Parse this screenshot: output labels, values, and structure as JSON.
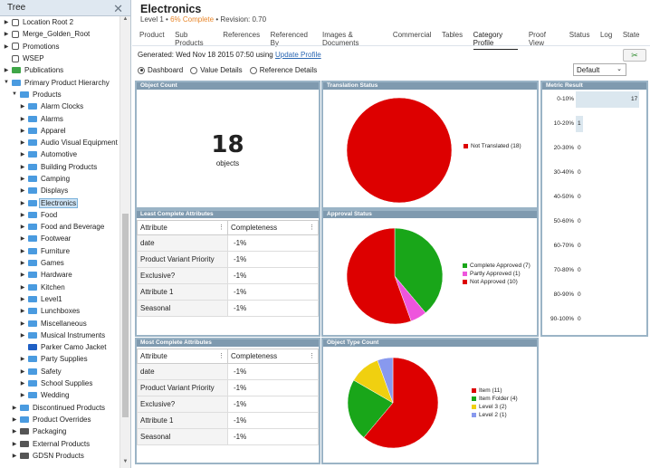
{
  "tree": {
    "title": "Tree",
    "items": [
      {
        "label": "Location Root 2",
        "expander": "▶",
        "icon": "struct",
        "indent": 0
      },
      {
        "label": "Merge_Golden_Root",
        "expander": "▶",
        "icon": "struct",
        "indent": 0
      },
      {
        "label": "Promotions",
        "expander": "▶",
        "icon": "struct",
        "indent": 0
      },
      {
        "label": "WSEP",
        "expander": "",
        "icon": "struct",
        "indent": 0
      },
      {
        "label": "Publications",
        "expander": "▶",
        "icon": "green",
        "indent": 0
      },
      {
        "label": "Primary Product Hierarchy",
        "expander": "▼",
        "icon": "blue",
        "indent": 0
      },
      {
        "label": "Products",
        "expander": "▼",
        "icon": "blue",
        "indent": 1
      },
      {
        "label": "Alarm Clocks",
        "expander": "▶",
        "icon": "blue",
        "indent": 2
      },
      {
        "label": "Alarms",
        "expander": "▶",
        "icon": "blue",
        "indent": 2
      },
      {
        "label": "Apparel",
        "expander": "▶",
        "icon": "blue",
        "indent": 2
      },
      {
        "label": "Audio Visual Equipment",
        "expander": "▶",
        "icon": "blue",
        "indent": 2
      },
      {
        "label": "Automotive",
        "expander": "▶",
        "icon": "blue",
        "indent": 2
      },
      {
        "label": "Building Products",
        "expander": "▶",
        "icon": "blue",
        "indent": 2
      },
      {
        "label": "Camping",
        "expander": "▶",
        "icon": "blue",
        "indent": 2
      },
      {
        "label": "Displays",
        "expander": "▶",
        "icon": "blue",
        "indent": 2
      },
      {
        "label": "Electronics",
        "expander": "▶",
        "icon": "blue",
        "indent": 2,
        "selected": true
      },
      {
        "label": "Food",
        "expander": "▶",
        "icon": "blue",
        "indent": 2
      },
      {
        "label": "Food and Beverage",
        "expander": "▶",
        "icon": "blue",
        "indent": 2
      },
      {
        "label": "Footwear",
        "expander": "▶",
        "icon": "blue",
        "indent": 2
      },
      {
        "label": "Furniture",
        "expander": "▶",
        "icon": "blue",
        "indent": 2
      },
      {
        "label": "Games",
        "expander": "▶",
        "icon": "blue",
        "indent": 2
      },
      {
        "label": "Hardware",
        "expander": "▶",
        "icon": "blue",
        "indent": 2
      },
      {
        "label": "Kitchen",
        "expander": "▶",
        "icon": "blue",
        "indent": 2
      },
      {
        "label": "Level1",
        "expander": "▶",
        "icon": "blue",
        "indent": 2
      },
      {
        "label": "Lunchboxes",
        "expander": "▶",
        "icon": "blue",
        "indent": 2
      },
      {
        "label": "Miscellaneous",
        "expander": "▶",
        "icon": "blue",
        "indent": 2
      },
      {
        "label": "Musical Instruments",
        "expander": "▶",
        "icon": "blue",
        "indent": 2
      },
      {
        "label": "Parker Camo Jacket",
        "expander": "",
        "icon": "navy",
        "indent": 2
      },
      {
        "label": "Party Supplies",
        "expander": "▶",
        "icon": "blue",
        "indent": 2
      },
      {
        "label": "Safety",
        "expander": "▶",
        "icon": "blue",
        "indent": 2
      },
      {
        "label": "School Supplies",
        "expander": "▶",
        "icon": "blue",
        "indent": 2
      },
      {
        "label": "Wedding",
        "expander": "▶",
        "icon": "blue",
        "indent": 2
      },
      {
        "label": "Discontinued Products",
        "expander": "▶",
        "icon": "blue",
        "indent": 1
      },
      {
        "label": "Product Overrides",
        "expander": "▶",
        "icon": "blue",
        "indent": 1
      },
      {
        "label": "Packaging",
        "expander": "▶",
        "icon": "dark",
        "indent": 1
      },
      {
        "label": "External Products",
        "expander": "▶",
        "icon": "dark",
        "indent": 1
      },
      {
        "label": "GDSN Products",
        "expander": "▶",
        "icon": "dark",
        "indent": 1
      }
    ]
  },
  "header": {
    "title": "Electronics",
    "level": "Level 1",
    "completion": "6% Complete",
    "revision": "Revision: 0.70"
  },
  "tabs": [
    "Product",
    "Sub Products",
    "References",
    "Referenced By",
    "Images & Documents",
    "Commercial",
    "Tables",
    "Category Profile",
    "Proof View",
    "Status",
    "Log",
    "State"
  ],
  "active_tab": "Category Profile",
  "generated": {
    "text": "Generated: Wed Nov 18 2015 07:50 using",
    "link": "Update Profile"
  },
  "views": [
    {
      "label": "Dashboard",
      "selected": true
    },
    {
      "label": "Value Details",
      "selected": false
    },
    {
      "label": "Reference Details",
      "selected": false
    }
  ],
  "select": {
    "value": "Default"
  },
  "object_count": {
    "title": "Object Count",
    "value": "18",
    "unit": "objects"
  },
  "colors": {
    "red": "#dd0000",
    "green": "#19a619",
    "pink": "#ee55dd",
    "yellow": "#f0d010",
    "lavender": "#8899ee",
    "panel_border": "#9bb4c6",
    "panel_title": "#7f9aaf"
  },
  "charts": {
    "translation": {
      "title": "Translation Status",
      "slices": [
        {
          "label": "Not Translated (18)",
          "value": 18,
          "color": "#dd0000"
        }
      ]
    },
    "approval": {
      "title": "Approval Status",
      "slices": [
        {
          "label": "Complete Approved (7)",
          "value": 7,
          "color": "#19a619"
        },
        {
          "label": "Partly Approved (1)",
          "value": 1,
          "color": "#ee55dd"
        },
        {
          "label": "Not Approved (10)",
          "value": 10,
          "color": "#dd0000"
        }
      ]
    },
    "object_type": {
      "title": "Object Type Count",
      "slices": [
        {
          "label": "Item (11)",
          "value": 11,
          "color": "#dd0000"
        },
        {
          "label": "Item Folder (4)",
          "value": 4,
          "color": "#19a619"
        },
        {
          "label": "Level 3 (2)",
          "value": 2,
          "color": "#f0d010"
        },
        {
          "label": "Level 2 (1)",
          "value": 1,
          "color": "#8899ee"
        }
      ]
    }
  },
  "least_complete": {
    "title": "Least Complete Attributes",
    "headers": [
      "Attribute",
      "Completeness"
    ],
    "rows": [
      [
        "date",
        "-1%"
      ],
      [
        "Product Variant Priority",
        "-1%"
      ],
      [
        "Exclusive?",
        "-1%"
      ],
      [
        "Attribute 1",
        "-1%"
      ],
      [
        "Seasonal",
        "-1%"
      ]
    ]
  },
  "most_complete": {
    "title": "Most Complete Attributes",
    "headers": [
      "Attribute",
      "Completeness"
    ],
    "rows": [
      [
        "date",
        "-1%"
      ],
      [
        "Product Variant Priority",
        "-1%"
      ],
      [
        "Exclusive?",
        "-1%"
      ],
      [
        "Attribute 1",
        "-1%"
      ],
      [
        "Seasonal",
        "-1%"
      ]
    ]
  },
  "metric": {
    "title": "Metric Result",
    "rows": [
      {
        "range": "0-10%",
        "count": 17
      },
      {
        "range": "10-20%",
        "count": 1
      },
      {
        "range": "20-30%",
        "count": 0
      },
      {
        "range": "30-40%",
        "count": 0
      },
      {
        "range": "40-50%",
        "count": 0
      },
      {
        "range": "50-60%",
        "count": 0
      },
      {
        "range": "60-70%",
        "count": 0
      },
      {
        "range": "70-80%",
        "count": 0
      },
      {
        "range": "80-90%",
        "count": 0
      },
      {
        "range": "90-100%",
        "count": 0
      }
    ]
  }
}
